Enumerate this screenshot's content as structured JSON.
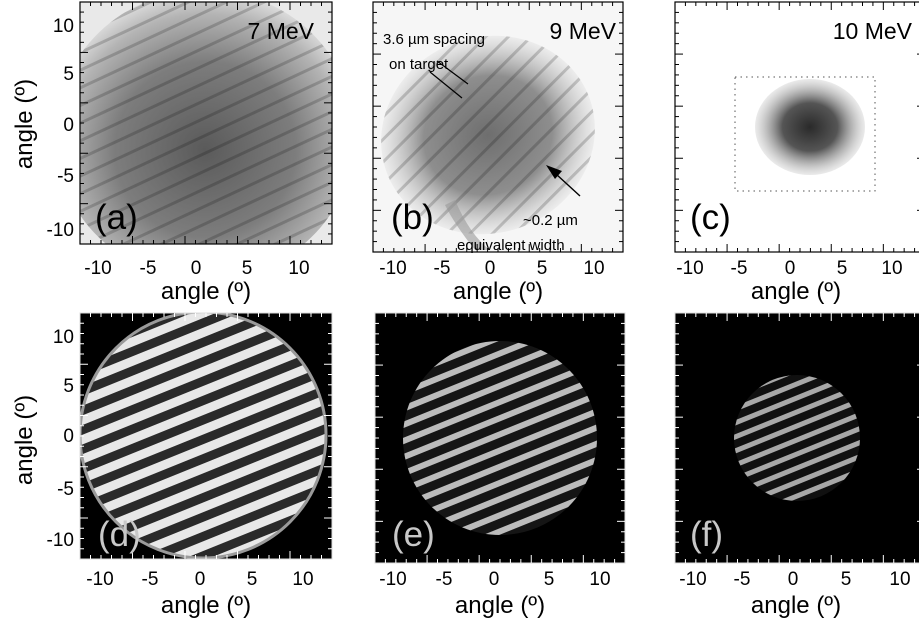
{
  "axis_label_y": "angle (º)",
  "axis_label_x": "angle (º)",
  "tick_labels": [
    "-10",
    "-5",
    "0",
    "5",
    "10"
  ],
  "panels": [
    {
      "id": "a",
      "label": "(a)",
      "energy": "7 MeV",
      "style": "grey"
    },
    {
      "id": "b",
      "label": "(b)",
      "energy": "9 MeV",
      "style": "grey",
      "annotation_top_line1": "3.6 µm spacing",
      "annotation_top_line2": "on target",
      "annotation_bottom_line1": "~0.2 µm",
      "annotation_bottom_line2": "equivalent width"
    },
    {
      "id": "c",
      "label": "(c)",
      "energy": "10 MeV",
      "style": "grey"
    },
    {
      "id": "d",
      "label": "(d)",
      "energy": "",
      "style": "dark"
    },
    {
      "id": "e",
      "label": "(e)",
      "energy": "",
      "style": "dark"
    },
    {
      "id": "f",
      "label": "(f)",
      "energy": "",
      "style": "dark"
    }
  ]
}
